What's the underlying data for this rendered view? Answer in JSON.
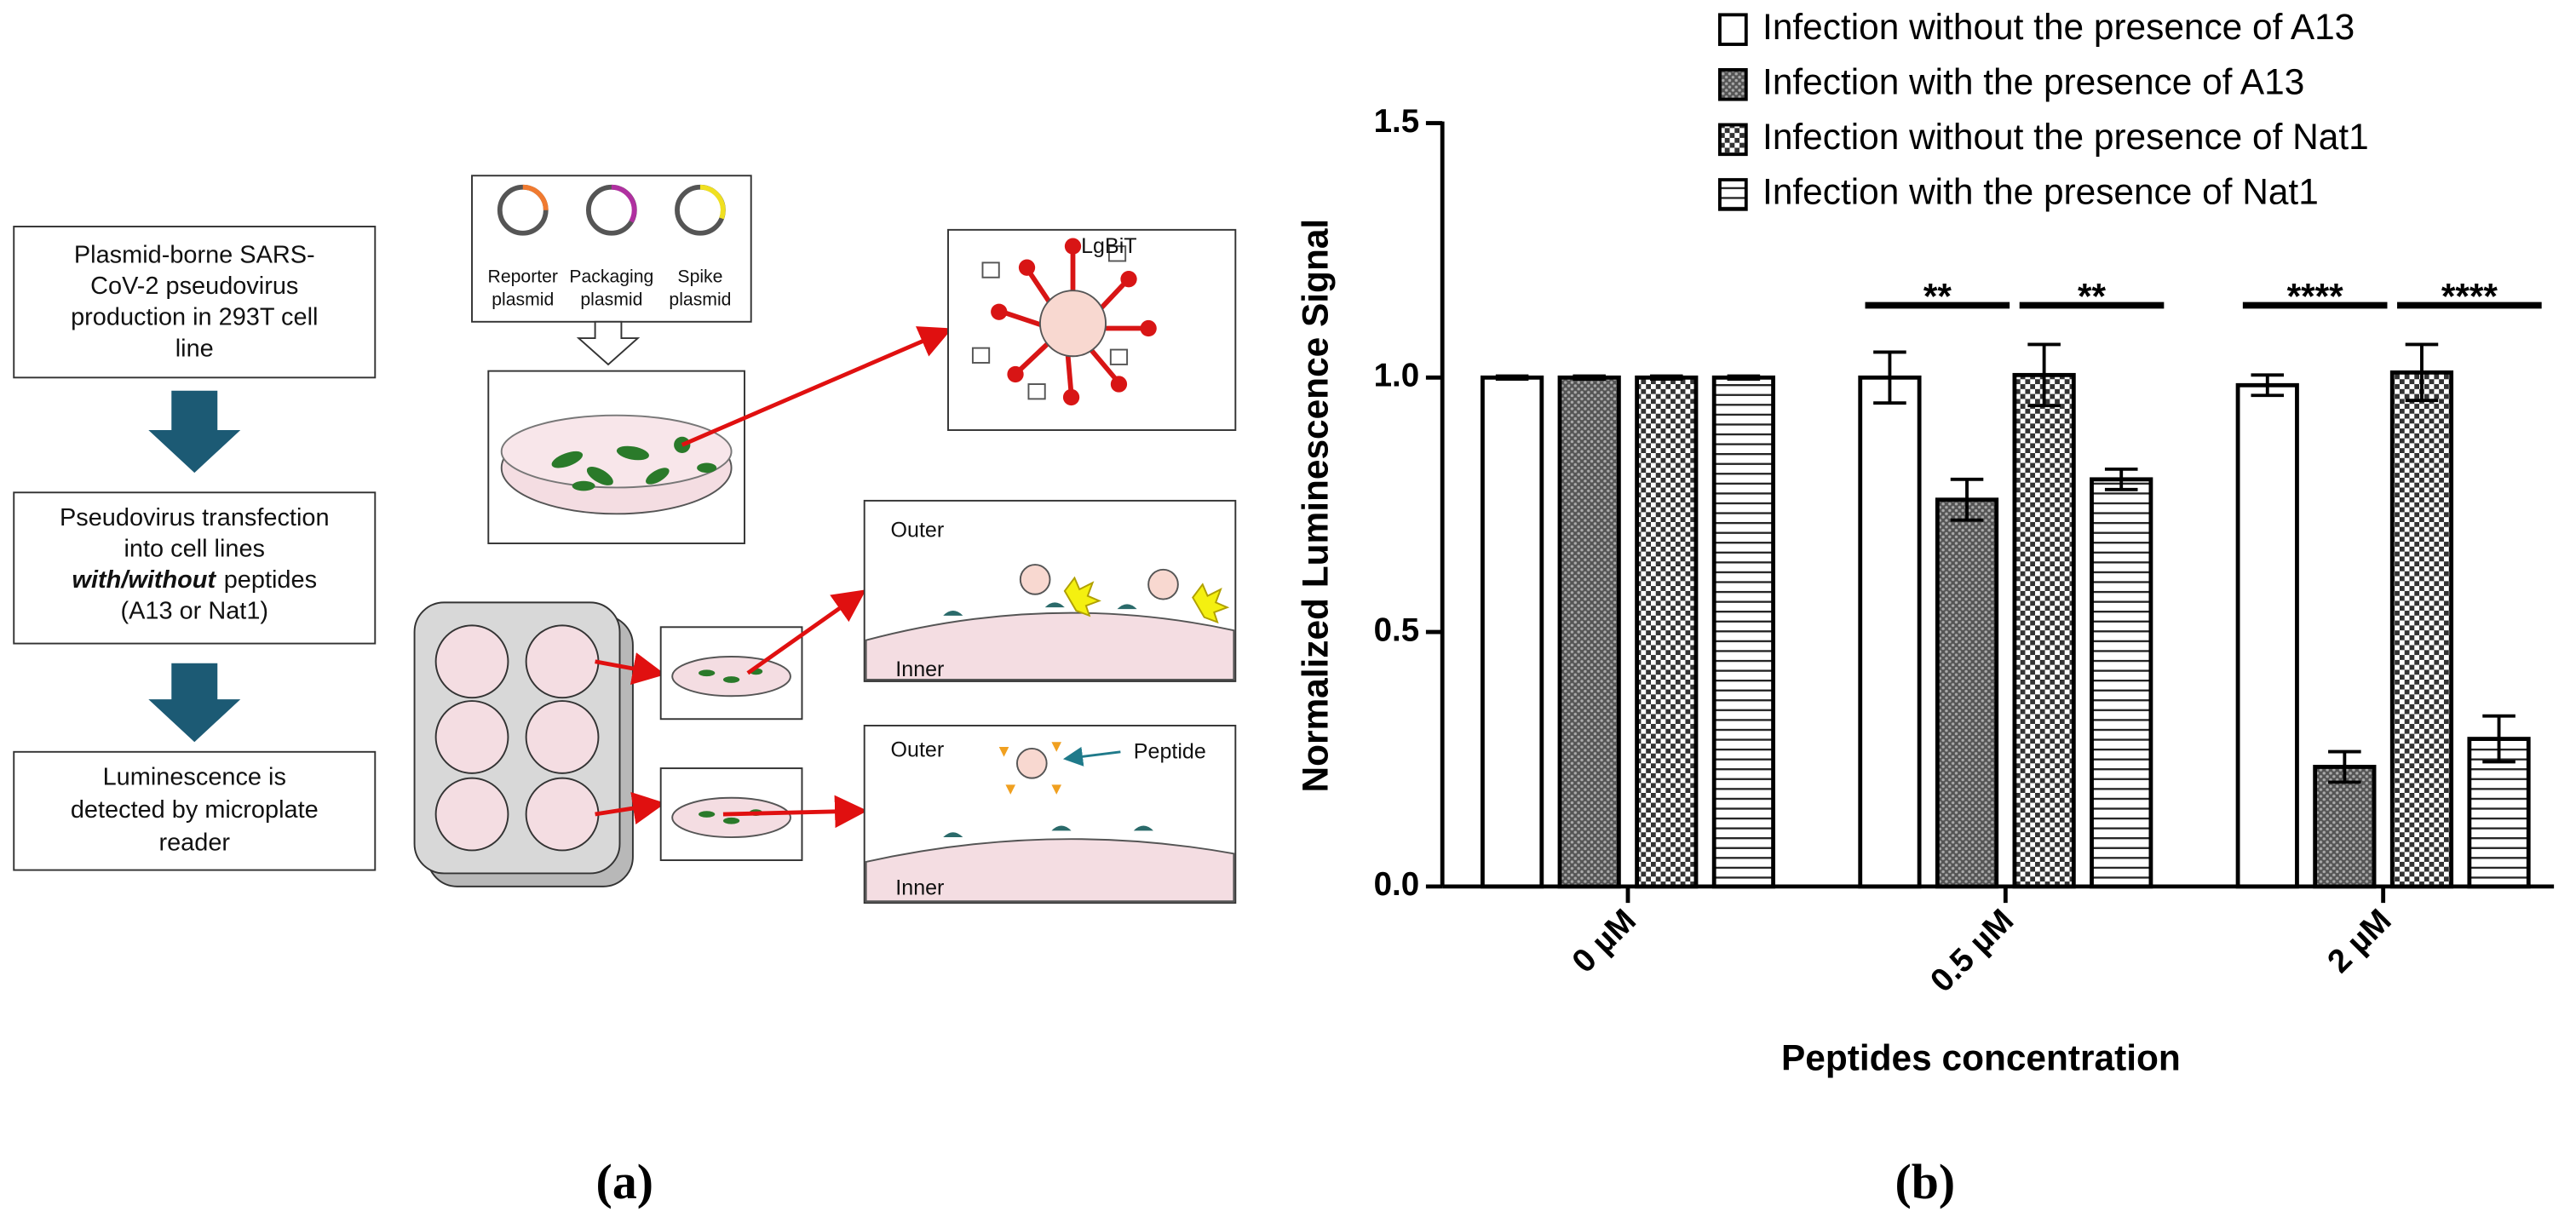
{
  "diagram": {
    "steps": [
      {
        "lines": [
          "Plasmid-borne SARS-",
          "CoV-2 pseudovirus",
          "production in 293T cell",
          "line"
        ]
      },
      {
        "lines": [
          "Pseudovirus transfection",
          "into cell lines"
        ],
        "emphasis": "with/without",
        "after": "peptides",
        "last": "(A13 or Nat1)"
      },
      {
        "lines": [
          "Luminescence is",
          "detected by microplate",
          "reader"
        ]
      }
    ],
    "plasmids": [
      {
        "lines": [
          "Reporter",
          "plasmid"
        ]
      },
      {
        "lines": [
          "Packaging",
          "plasmid"
        ]
      },
      {
        "lines": [
          "Spike",
          "plasmid"
        ]
      }
    ],
    "lgbit": "LgBiT",
    "outer_1": "Outer",
    "inner_1": "Inner",
    "outer_2": "Outer",
    "peptide": "Peptide",
    "inner_2": "Inner",
    "panel_a": "(a)",
    "panel_b": "(b)"
  },
  "chart_data": {
    "type": "bar",
    "ylabel": "Normalized Luminescence Signal",
    "xlabel": "Peptides concentration",
    "categories": [
      "0 µM",
      "0.5 µM",
      "2 µM"
    ],
    "series": [
      {
        "name": "Infection without the presence of A13",
        "pattern": "none",
        "values": [
          1.0,
          1.0,
          0.985
        ],
        "errors": [
          0.003,
          0.05,
          0.02
        ]
      },
      {
        "name": "Infection with the presence of A13",
        "pattern": "dots",
        "values": [
          1.0,
          0.76,
          0.235
        ],
        "errors": [
          0.003,
          0.04,
          0.03
        ]
      },
      {
        "name": "Infection without the presence of Nat1",
        "pattern": "checker",
        "values": [
          1.0,
          1.005,
          1.01
        ],
        "errors": [
          0.003,
          0.06,
          0.055
        ]
      },
      {
        "name": "Infection with the presence of Nat1",
        "pattern": "stripes",
        "values": [
          1.0,
          0.8,
          0.29
        ],
        "errors": [
          0.003,
          0.02,
          0.045
        ]
      }
    ],
    "ylim": [
      0,
      1.5
    ],
    "yticks": [
      {
        "value": 0,
        "label": "0.0"
      },
      0.5,
      {
        "value": 1,
        "label": "1.0"
      },
      1.5
    ],
    "annotations": [
      "**",
      "**",
      "****",
      "****"
    ],
    "legend": "top"
  }
}
